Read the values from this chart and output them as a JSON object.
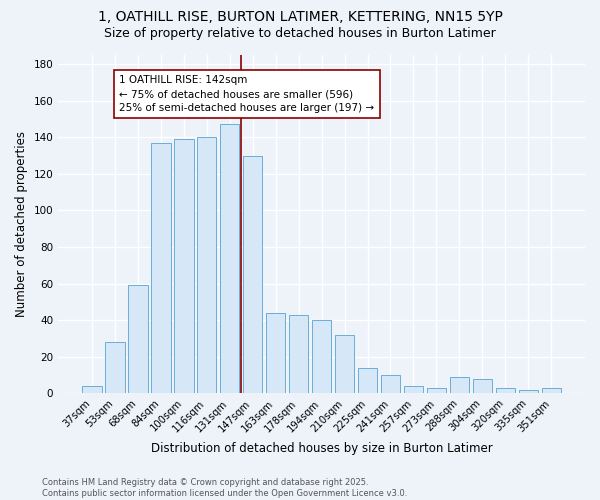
{
  "title_line1": "1, OATHILL RISE, BURTON LATIMER, KETTERING, NN15 5YP",
  "title_line2": "Size of property relative to detached houses in Burton Latimer",
  "xlabel": "Distribution of detached houses by size in Burton Latimer",
  "ylabel": "Number of detached properties",
  "bar_labels": [
    "37sqm",
    "53sqm",
    "68sqm",
    "84sqm",
    "100sqm",
    "116sqm",
    "131sqm",
    "147sqm",
    "163sqm",
    "178sqm",
    "194sqm",
    "210sqm",
    "225sqm",
    "241sqm",
    "257sqm",
    "273sqm",
    "288sqm",
    "304sqm",
    "320sqm",
    "335sqm",
    "351sqm"
  ],
  "bar_values": [
    4,
    28,
    59,
    137,
    139,
    140,
    147,
    130,
    44,
    43,
    40,
    32,
    14,
    10,
    4,
    3,
    9,
    8,
    3,
    2,
    3
  ],
  "bar_color": "#d6e8f7",
  "bar_edge_color": "#6aaed6",
  "vline_x": 7,
  "vline_color": "#8b0000",
  "annotation_text": "1 OATHILL RISE: 142sqm\n← 75% of detached houses are smaller (596)\n25% of semi-detached houses are larger (197) →",
  "annotation_box_color": "white",
  "annotation_box_edgecolor": "#8b0000",
  "annotation_fontsize": 7.5,
  "ylim": [
    0,
    185
  ],
  "yticks": [
    0,
    20,
    40,
    60,
    80,
    100,
    120,
    140,
    160,
    180
  ],
  "background_color": "#eef2f9",
  "grid_color": "white",
  "footer_text": "Contains HM Land Registry data © Crown copyright and database right 2025.\nContains public sector information licensed under the Open Government Licence v3.0.",
  "title_fontsize": 10,
  "subtitle_fontsize": 9,
  "fig_width": 6.0,
  "fig_height": 5.0,
  "fig_dpi": 100
}
